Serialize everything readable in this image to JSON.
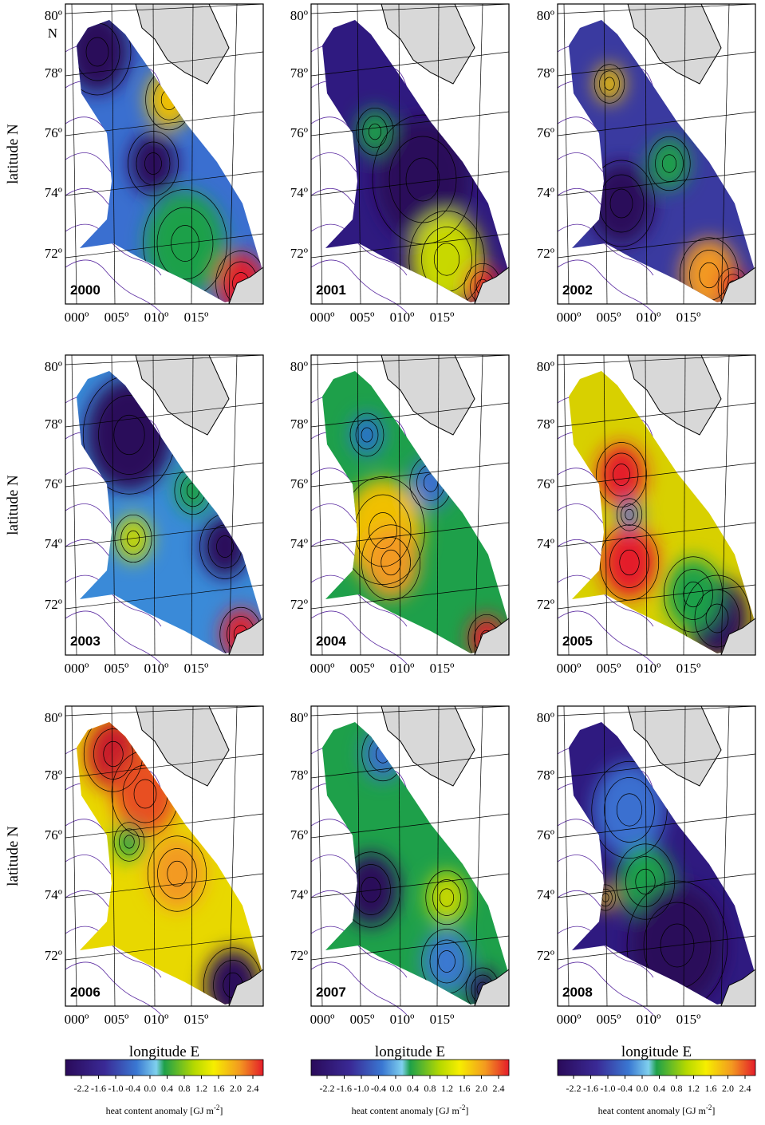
{
  "panels": [
    {
      "year": "2000"
    },
    {
      "year": "2001"
    },
    {
      "year": "2002"
    },
    {
      "year": "2003"
    },
    {
      "year": "2004"
    },
    {
      "year": "2005"
    },
    {
      "year": "2006"
    },
    {
      "year": "2007"
    },
    {
      "year": "2008"
    }
  ],
  "lat_ticks": [
    "80º",
    "78º",
    "76º",
    "74º",
    "72º"
  ],
  "lat_north": "N",
  "lon_ticks": [
    "000º",
    "005º",
    "010º",
    "015º"
  ],
  "y_axis_label": "latitude N",
  "x_axis_label": "longitude E",
  "colorbar": {
    "ticks": [
      "-2.2",
      "-1.6",
      "-1.0",
      "-0.4",
      "0.0",
      "0.4",
      "0.8",
      "1.2",
      "1.6",
      "2.0",
      "2.4"
    ],
    "label": "heat content anomaly [GJ m",
    "label_exp": "-2",
    "label_end": "]"
  }
}
